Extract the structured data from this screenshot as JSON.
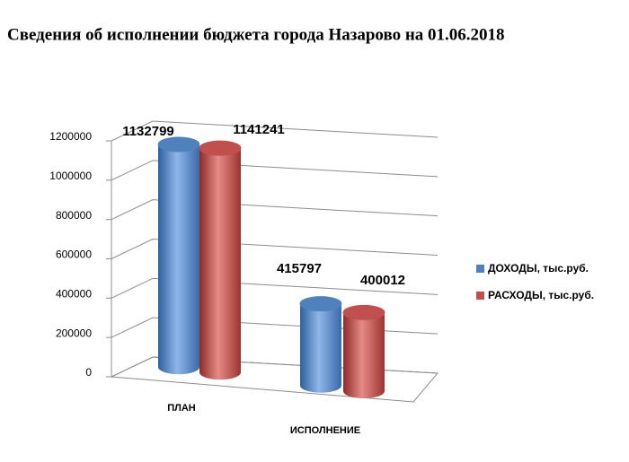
{
  "chart_data": {
    "type": "bar3d",
    "title": "Сведения об исполнении бюджета города Назарово на 01.06.2018",
    "categories": [
      "ПЛАН",
      "ИСПОЛНЕНИЕ"
    ],
    "series": [
      {
        "name": "ДОХОДЫ, тыс.руб.",
        "color": "#4f81bd",
        "values": [
          1132799,
          415797
        ]
      },
      {
        "name": "РАСХОДЫ, тыс.руб.",
        "color": "#c0504d",
        "values": [
          1141241,
          400012
        ]
      }
    ],
    "ylim": [
      0,
      1200000
    ],
    "yticks": [
      0,
      200000,
      400000,
      600000,
      800000,
      1000000,
      1200000
    ],
    "grid": true,
    "legend": "right"
  }
}
